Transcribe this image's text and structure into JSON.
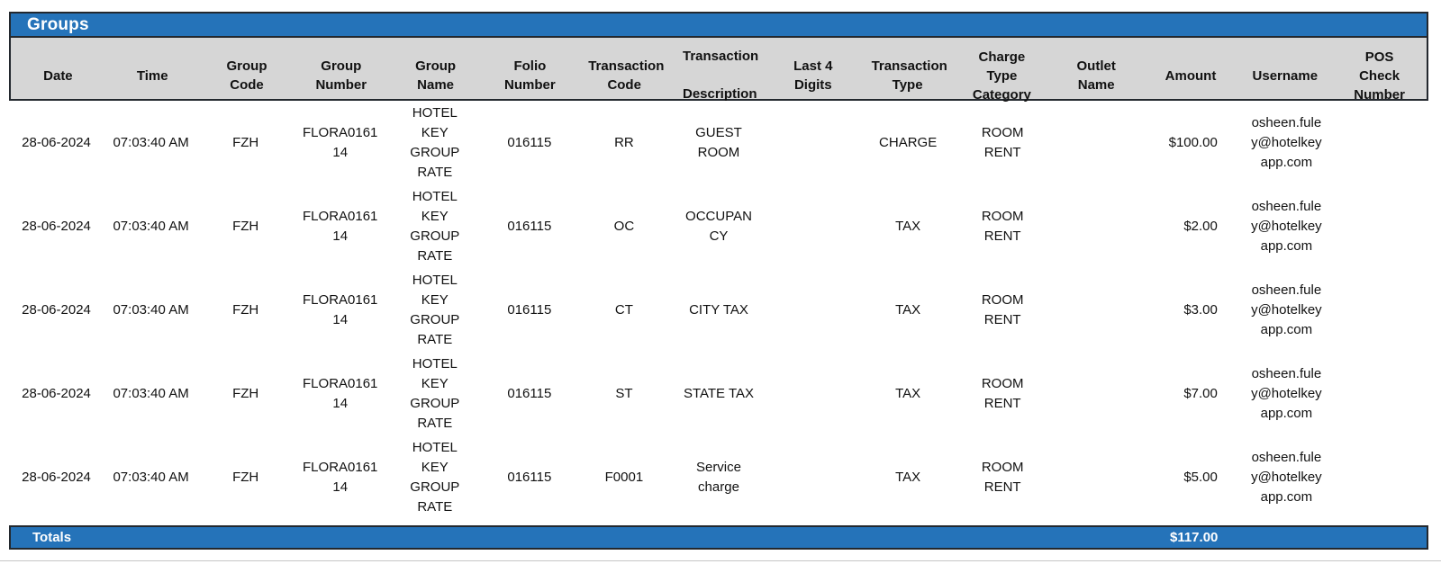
{
  "colors": {
    "accent": "#2573b9",
    "header_bg": "#d6d6d6",
    "border": "#23282e",
    "text": "#111111",
    "title_text": "#ffffff"
  },
  "report": {
    "title": "Groups",
    "totals_label": "Totals",
    "totals_amount": "$117.00"
  },
  "table": {
    "columns": [
      {
        "key": "date",
        "label": "Date"
      },
      {
        "key": "time",
        "label": "Time"
      },
      {
        "key": "group_code",
        "label": "Group Code"
      },
      {
        "key": "group_number",
        "label": "Group Number"
      },
      {
        "key": "group_name",
        "label": "Group Name"
      },
      {
        "key": "folio_number",
        "label": "Folio Number"
      },
      {
        "key": "transaction_code",
        "label": "Transaction Code"
      },
      {
        "key": "transaction_description",
        "label": "Transaction Description"
      },
      {
        "key": "last_4_digits",
        "label": "Last 4 Digits"
      },
      {
        "key": "transaction_type",
        "label": "Transaction Type"
      },
      {
        "key": "charge_type_category",
        "label": "Charge Type Category"
      },
      {
        "key": "outlet_name",
        "label": "Outlet Name"
      },
      {
        "key": "amount",
        "label": "Amount"
      },
      {
        "key": "username",
        "label": "Username"
      },
      {
        "key": "pos_check_number",
        "label": "POS Check Number"
      }
    ],
    "rows": [
      {
        "date": "28-06-2024",
        "time": "07:03:40 AM",
        "group_code": "FZH",
        "group_number": "FLORA016114",
        "group_name": "HOTEL KEY GROUP RATE",
        "folio_number": "016115",
        "transaction_code": "RR",
        "transaction_description": "GUEST ROOM",
        "last_4_digits": "",
        "transaction_type": "CHARGE",
        "charge_type_category": "ROOM RENT",
        "outlet_name": "",
        "amount": "$100.00",
        "username": "osheen.fuley@hotelkeyapp.com",
        "pos_check_number": ""
      },
      {
        "date": "28-06-2024",
        "time": "07:03:40 AM",
        "group_code": "FZH",
        "group_number": "FLORA016114",
        "group_name": "HOTEL KEY GROUP RATE",
        "folio_number": "016115",
        "transaction_code": "OC",
        "transaction_description": "OCCUPANCY",
        "last_4_digits": "",
        "transaction_type": "TAX",
        "charge_type_category": "ROOM RENT",
        "outlet_name": "",
        "amount": "$2.00",
        "username": "osheen.fuley@hotelkeyapp.com",
        "pos_check_number": ""
      },
      {
        "date": "28-06-2024",
        "time": "07:03:40 AM",
        "group_code": "FZH",
        "group_number": "FLORA016114",
        "group_name": "HOTEL KEY GROUP RATE",
        "folio_number": "016115",
        "transaction_code": "CT",
        "transaction_description": "CITY TAX",
        "last_4_digits": "",
        "transaction_type": "TAX",
        "charge_type_category": "ROOM RENT",
        "outlet_name": "",
        "amount": "$3.00",
        "username": "osheen.fuley@hotelkeyapp.com",
        "pos_check_number": ""
      },
      {
        "date": "28-06-2024",
        "time": "07:03:40 AM",
        "group_code": "FZH",
        "group_number": "FLORA016114",
        "group_name": "HOTEL KEY GROUP RATE",
        "folio_number": "016115",
        "transaction_code": "ST",
        "transaction_description": "STATE TAX",
        "last_4_digits": "",
        "transaction_type": "TAX",
        "charge_type_category": "ROOM RENT",
        "outlet_name": "",
        "amount": "$7.00",
        "username": "osheen.fuley@hotelkeyapp.com",
        "pos_check_number": ""
      },
      {
        "date": "28-06-2024",
        "time": "07:03:40 AM",
        "group_code": "FZH",
        "group_number": "FLORA016114",
        "group_name": "HOTEL KEY GROUP RATE",
        "folio_number": "016115",
        "transaction_code": "F0001",
        "transaction_description": "Service charge",
        "last_4_digits": "",
        "transaction_type": "TAX",
        "charge_type_category": "ROOM RENT",
        "outlet_name": "",
        "amount": "$5.00",
        "username": "osheen.fuley@hotelkeyapp.com",
        "pos_check_number": ""
      }
    ]
  }
}
